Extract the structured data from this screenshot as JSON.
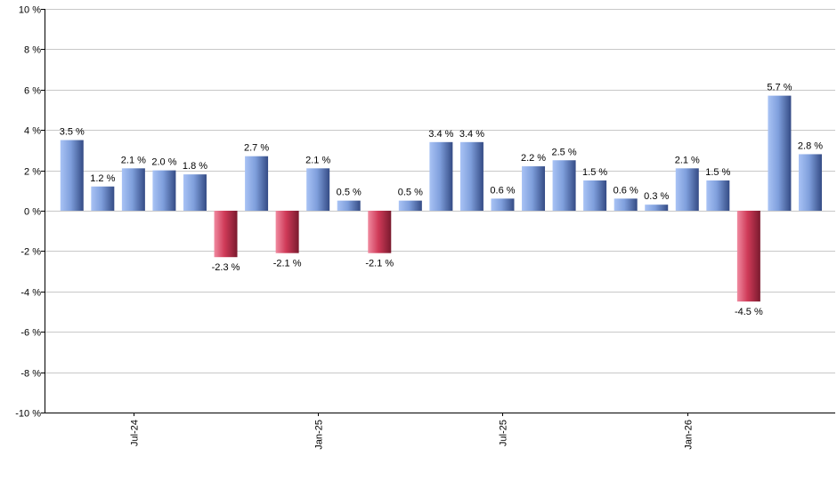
{
  "chart_data": {
    "type": "bar",
    "ylim": [
      -10,
      10
    ],
    "y_ticks": [
      {
        "value": 10,
        "label": "10 %"
      },
      {
        "value": 8,
        "label": "8 %"
      },
      {
        "value": 6,
        "label": "6 %"
      },
      {
        "value": 4,
        "label": "4 %"
      },
      {
        "value": 2,
        "label": "2 %"
      },
      {
        "value": 0,
        "label": "0 %"
      },
      {
        "value": -2,
        "label": "-2 %"
      },
      {
        "value": -4,
        "label": "-4 %"
      },
      {
        "value": -6,
        "label": "-6 %"
      },
      {
        "value": -8,
        "label": "-8 %"
      },
      {
        "value": -10,
        "label": "-10 %"
      }
    ],
    "x_ticks": [
      {
        "index": 2,
        "label": "Jul-24"
      },
      {
        "index": 8,
        "label": "Jan-25"
      },
      {
        "index": 14,
        "label": "Jul-25"
      },
      {
        "index": 20,
        "label": "Jan-26"
      }
    ],
    "grid": true,
    "values": [
      3.5,
      1.2,
      2.1,
      2.0,
      1.8,
      -2.3,
      2.7,
      -2.1,
      2.1,
      0.5,
      -2.1,
      0.5,
      3.4,
      3.4,
      0.6,
      2.2,
      2.5,
      1.5,
      0.6,
      0.3,
      2.1,
      1.5,
      -4.5,
      5.7,
      2.8
    ],
    "value_labels": [
      "3.5 %",
      "1.2 %",
      "2.1 %",
      "2.0 %",
      "1.8 %",
      "-2.3 %",
      "2.7 %",
      "-2.1 %",
      "2.1 %",
      "0.5 %",
      "-2.1 %",
      "0.5 %",
      "3.4 %",
      "3.4 %",
      "0.6 %",
      "2.2 %",
      "2.5 %",
      "1.5 %",
      "0.6 %",
      "0.3 %",
      "2.1 %",
      "1.5 %",
      "-4.5 %",
      "5.7 %",
      "2.8 %"
    ],
    "colors": {
      "positive": "#7f9fdc",
      "negative": "#c2364f"
    }
  }
}
